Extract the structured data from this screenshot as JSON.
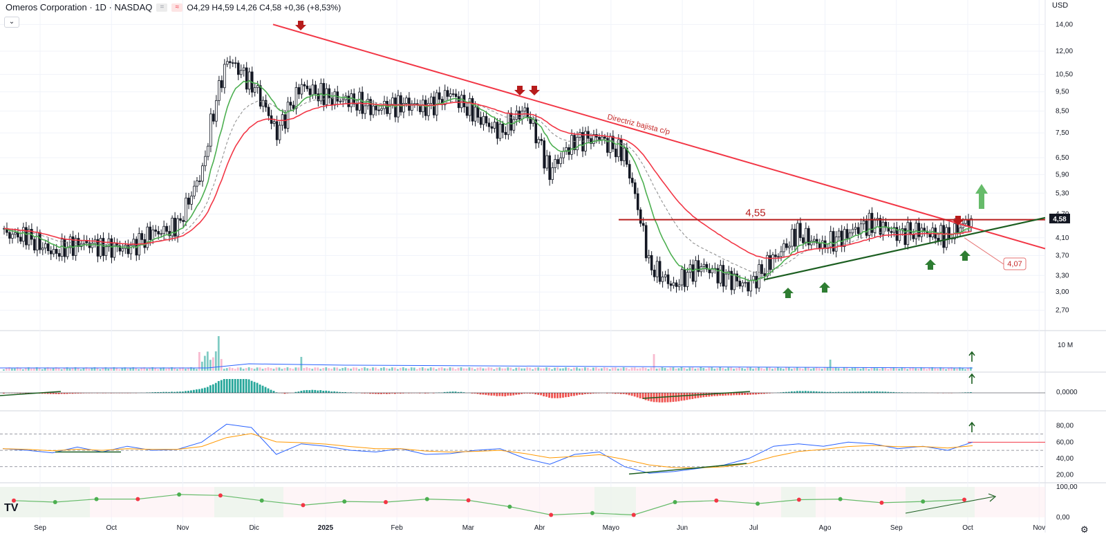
{
  "header": {
    "symbol_title": "Omeros Corporation · 1D · NASDAQ",
    "ohlc": "O4,29  H4,59  L4,26  C4,58  +0,36 (+8,53%)",
    "currency": "USD",
    "collapse_icon": "chevron-down-icon",
    "logo_text": "TV",
    "settings_icon": "gear-icon"
  },
  "colors": {
    "up": "#089981",
    "down": "#131722",
    "ema_fast": "#4caf50",
    "ema_slow": "#f23645",
    "trendline": "#f23645",
    "support": "#1b5e20",
    "arrow_down": "#b71c1c",
    "arrow_up": "#2e7d32",
    "rsi": "#2962ff",
    "rsi_ma": "#ff9800",
    "hist_pos": "#26a69a",
    "hist_neg": "#ef5350"
  },
  "chart_data": {
    "type": "candlestick",
    "x_tick_labels": [
      "Sep",
      "Oct",
      "Nov",
      "Dic",
      "2025",
      "Feb",
      "Mar",
      "Abr",
      "Mayo",
      "Jun",
      "Jul",
      "Ago",
      "Sep",
      "Oct",
      "Nov"
    ],
    "y_tick_labels": [
      "14,00",
      "12,00",
      "10,50",
      "9,50",
      "8,50",
      "7,50",
      "6,50",
      "5,90",
      "5,30",
      "4,70",
      "4,10",
      "3,70",
      "3,30",
      "3,00",
      "2,70"
    ],
    "y_scale": "log",
    "ylim": [
      2.5,
      15
    ],
    "last_price_label": "4,58",
    "resistance": {
      "label": "4,55",
      "value": 4.55
    },
    "support_callout": "4,07",
    "trendline_label": "Directriz bajista c/p",
    "price_series": [
      {
        "month": "Sep",
        "close": 4.2
      },
      {
        "month": "Sep",
        "close": 4.1
      },
      {
        "month": "Sep",
        "close": 3.75
      },
      {
        "month": "Oct",
        "close": 4.0
      },
      {
        "month": "Oct",
        "close": 3.9
      },
      {
        "month": "Oct",
        "close": 3.85
      },
      {
        "month": "Nov",
        "close": 4.2
      },
      {
        "month": "Nov",
        "close": 4.35
      },
      {
        "month": "Nov",
        "close": 6.0
      },
      {
        "month": "Dic",
        "close": 11.5
      },
      {
        "month": "Dic",
        "close": 10.0
      },
      {
        "month": "Dic",
        "close": 7.5
      },
      {
        "month": "2025",
        "close": 9.8
      },
      {
        "month": "2025",
        "close": 9.2
      },
      {
        "month": "2025",
        "close": 9.0
      },
      {
        "month": "Feb",
        "close": 8.6
      },
      {
        "month": "Feb",
        "close": 8.9
      },
      {
        "month": "Feb",
        "close": 8.7
      },
      {
        "month": "Mar",
        "close": 9.4
      },
      {
        "month": "Mar",
        "close": 8.3
      },
      {
        "month": "Mar",
        "close": 7.5
      },
      {
        "month": "Abr",
        "close": 8.6
      },
      {
        "month": "Abr",
        "close": 6.0
      },
      {
        "month": "Abr",
        "close": 7.2
      },
      {
        "month": "Mayo",
        "close": 7.3
      },
      {
        "month": "Mayo",
        "close": 6.6
      },
      {
        "month": "Mayo",
        "close": 3.5
      },
      {
        "month": "Jun",
        "close": 3.1
      },
      {
        "month": "Jun",
        "close": 3.5
      },
      {
        "month": "Jun",
        "close": 3.3
      },
      {
        "month": "Jul",
        "close": 3.1
      },
      {
        "month": "Jul",
        "close": 3.6
      },
      {
        "month": "Jul",
        "close": 4.2
      },
      {
        "month": "Ago",
        "close": 3.9
      },
      {
        "month": "Ago",
        "close": 4.2
      },
      {
        "month": "Ago",
        "close": 4.5
      },
      {
        "month": "Sep",
        "close": 4.2
      },
      {
        "month": "Sep",
        "close": 4.25
      },
      {
        "month": "Sep",
        "close": 4.1
      },
      {
        "month": "Oct",
        "close": 4.58
      }
    ],
    "volume_axis_label": "10 M",
    "macd_axis_label": "0,0000",
    "rsi_axis_labels": [
      "80,00",
      "60,00",
      "40,00",
      "20,00"
    ],
    "rsi_series": [
      52,
      50,
      47,
      54,
      48,
      55,
      50,
      51,
      60,
      82,
      78,
      45,
      58,
      55,
      50,
      48,
      52,
      45,
      46,
      50,
      52,
      40,
      33,
      45,
      48,
      30,
      22,
      24,
      28,
      32,
      40,
      55,
      58,
      55,
      60,
      58,
      52,
      55,
      50,
      60
    ],
    "bottom_axis_labels": [
      "100,00",
      "0,00"
    ],
    "bottom_dots": [
      {
        "value": 55,
        "color": "#f23645"
      },
      {
        "value": 50,
        "color": "#4caf50"
      },
      {
        "value": 60,
        "color": "#4caf50"
      },
      {
        "value": 60,
        "color": "#f23645"
      },
      {
        "value": 75,
        "color": "#4caf50"
      },
      {
        "value": 72,
        "color": "#f23645"
      },
      {
        "value": 55,
        "color": "#4caf50"
      },
      {
        "value": 40,
        "color": "#f23645"
      },
      {
        "value": 52,
        "color": "#4caf50"
      },
      {
        "value": 50,
        "color": "#f23645"
      },
      {
        "value": 60,
        "color": "#4caf50"
      },
      {
        "value": 56,
        "color": "#f23645"
      },
      {
        "value": 35,
        "color": "#4caf50"
      },
      {
        "value": 8,
        "color": "#f23645"
      },
      {
        "value": 14,
        "color": "#4caf50"
      },
      {
        "value": 8,
        "color": "#f23645"
      },
      {
        "value": 50,
        "color": "#4caf50"
      },
      {
        "value": 55,
        "color": "#f23645"
      },
      {
        "value": 45,
        "color": "#4caf50"
      },
      {
        "value": 58,
        "color": "#f23645"
      },
      {
        "value": 60,
        "color": "#4caf50"
      },
      {
        "value": 48,
        "color": "#f23645"
      },
      {
        "value": 52,
        "color": "#4caf50"
      },
      {
        "value": 58,
        "color": "#f23645"
      }
    ]
  }
}
